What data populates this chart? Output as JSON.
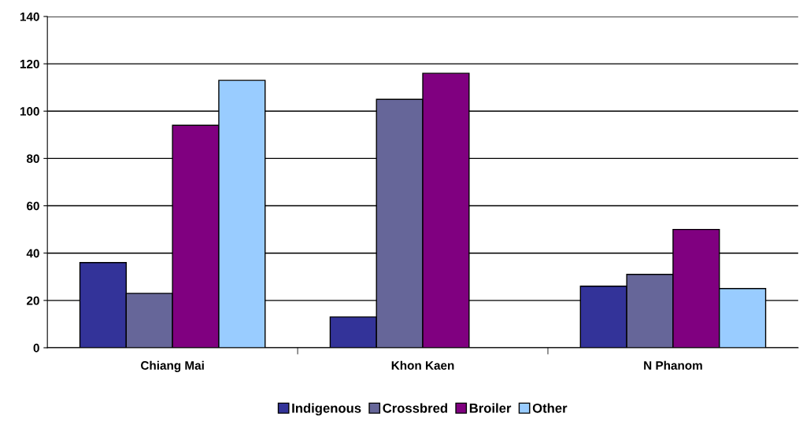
{
  "chart_data": {
    "type": "bar",
    "categories": [
      "Chiang Mai",
      "Khon Kaen",
      "N Phanom"
    ],
    "series": [
      {
        "name": "Indigenous",
        "color": "#333399",
        "values": [
          36,
          13,
          26
        ]
      },
      {
        "name": "Crossbred",
        "color": "#666699",
        "values": [
          23,
          105,
          31
        ]
      },
      {
        "name": "Broiler",
        "color": "#800080",
        "values": [
          94,
          116,
          50
        ]
      },
      {
        "name": "Other",
        "color": "#99ccff",
        "values": [
          113,
          null,
          25
        ]
      }
    ],
    "ylim": [
      0,
      140
    ],
    "yticks": [
      0,
      20,
      40,
      60,
      80,
      100,
      120,
      140
    ],
    "grid": "y",
    "legend": "bottom"
  }
}
